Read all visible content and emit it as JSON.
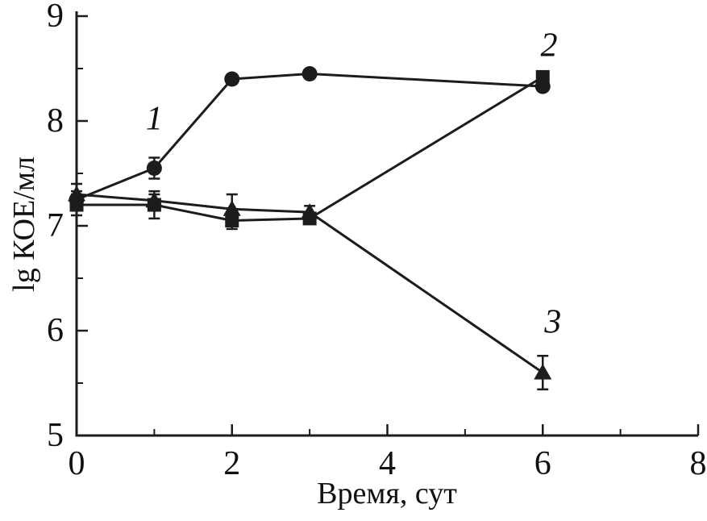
{
  "figure": {
    "xlabel": "Время, сут",
    "ylabel": "lg КОЕ/мл"
  },
  "chart_data": {
    "type": "line",
    "title": "",
    "xlabel": "Время, сут",
    "ylabel": "lg КОЕ/мл",
    "x": [
      0,
      1,
      2,
      3,
      6
    ],
    "series": [
      {
        "name": "1",
        "marker": "circle",
        "values": [
          7.25,
          7.55,
          8.4,
          8.45,
          8.33
        ],
        "errors": [
          0.08,
          0.1,
          0.04,
          0.04,
          0.04
        ]
      },
      {
        "name": "2",
        "marker": "square",
        "values": [
          7.2,
          7.2,
          7.05,
          7.07,
          8.42
        ],
        "errors": [
          0.1,
          0.13,
          0.08,
          0.05,
          0.05
        ]
      },
      {
        "name": "3",
        "marker": "triangle",
        "values": [
          7.3,
          7.24,
          7.16,
          7.13,
          5.6
        ],
        "errors": [
          0.1,
          0.06,
          0.14,
          0.06,
          0.16
        ]
      }
    ],
    "xlim": [
      0,
      8
    ],
    "ylim": [
      5,
      9
    ],
    "xticks": [
      0,
      2,
      4,
      6,
      8
    ],
    "yticks": [
      5,
      6,
      7,
      8,
      9
    ],
    "x_minor_step": 1,
    "y_minor_step": 0.5,
    "annotations": [
      {
        "text": "1",
        "x": 1.0,
        "y": 8.02
      },
      {
        "text": "2",
        "x": 6.08,
        "y": 8.72
      },
      {
        "text": "3",
        "x": 6.13,
        "y": 6.08
      }
    ],
    "grid": false,
    "legend": "none",
    "line_color": "#1c1c1c"
  }
}
